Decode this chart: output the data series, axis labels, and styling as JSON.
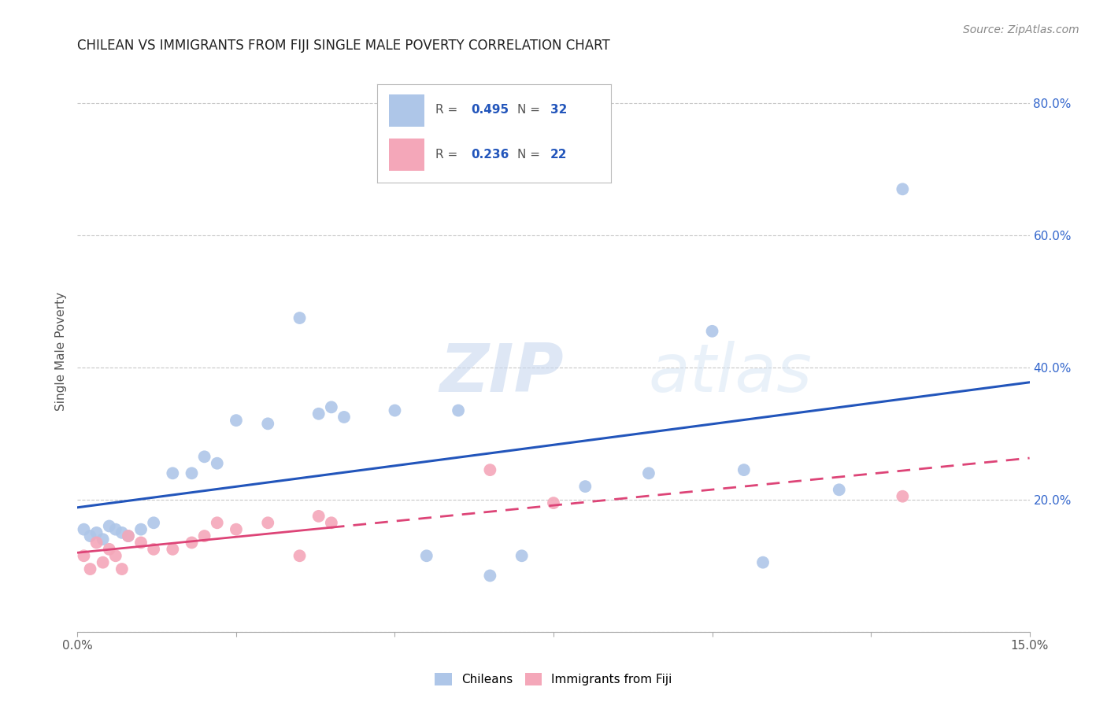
{
  "title": "CHILEAN VS IMMIGRANTS FROM FIJI SINGLE MALE POVERTY CORRELATION CHART",
  "source": "Source: ZipAtlas.com",
  "ylabel": "Single Male Poverty",
  "xlim": [
    0.0,
    0.15
  ],
  "ylim": [
    0.0,
    0.85
  ],
  "ytick_values": [
    0.0,
    0.2,
    0.4,
    0.6,
    0.8
  ],
  "ytick_labels_right": [
    "",
    "20.0%",
    "40.0%",
    "60.0%",
    "80.0%"
  ],
  "xtick_values": [
    0.0,
    0.025,
    0.05,
    0.075,
    0.1,
    0.125,
    0.15
  ],
  "xtick_labels": [
    "0.0%",
    "",
    "",
    "",
    "",
    "",
    "15.0%"
  ],
  "grid_color": "#c8c8c8",
  "background_color": "#ffffff",
  "chilean_color": "#aec6e8",
  "fiji_color": "#f4a7b9",
  "trendline_blue": "#2255bb",
  "trendline_pink": "#dd4477",
  "R_chilean": 0.495,
  "N_chilean": 32,
  "R_fiji": 0.236,
  "N_fiji": 22,
  "chilean_x": [
    0.001,
    0.002,
    0.003,
    0.004,
    0.005,
    0.006,
    0.007,
    0.008,
    0.01,
    0.012,
    0.015,
    0.018,
    0.02,
    0.022,
    0.025,
    0.03,
    0.035,
    0.038,
    0.04,
    0.042,
    0.05,
    0.055,
    0.06,
    0.065,
    0.07,
    0.08,
    0.09,
    0.1,
    0.105,
    0.108,
    0.12,
    0.13
  ],
  "chilean_y": [
    0.155,
    0.145,
    0.15,
    0.14,
    0.16,
    0.155,
    0.15,
    0.145,
    0.155,
    0.165,
    0.24,
    0.24,
    0.265,
    0.255,
    0.32,
    0.315,
    0.475,
    0.33,
    0.34,
    0.325,
    0.335,
    0.115,
    0.335,
    0.085,
    0.115,
    0.22,
    0.24,
    0.455,
    0.245,
    0.105,
    0.215,
    0.67
  ],
  "fiji_x": [
    0.001,
    0.002,
    0.003,
    0.004,
    0.005,
    0.006,
    0.007,
    0.008,
    0.01,
    0.012,
    0.015,
    0.018,
    0.02,
    0.022,
    0.025,
    0.03,
    0.035,
    0.038,
    0.04,
    0.065,
    0.075,
    0.13
  ],
  "fiji_y": [
    0.115,
    0.095,
    0.135,
    0.105,
    0.125,
    0.115,
    0.095,
    0.145,
    0.135,
    0.125,
    0.125,
    0.135,
    0.145,
    0.165,
    0.155,
    0.165,
    0.115,
    0.175,
    0.165,
    0.245,
    0.195,
    0.205
  ]
}
